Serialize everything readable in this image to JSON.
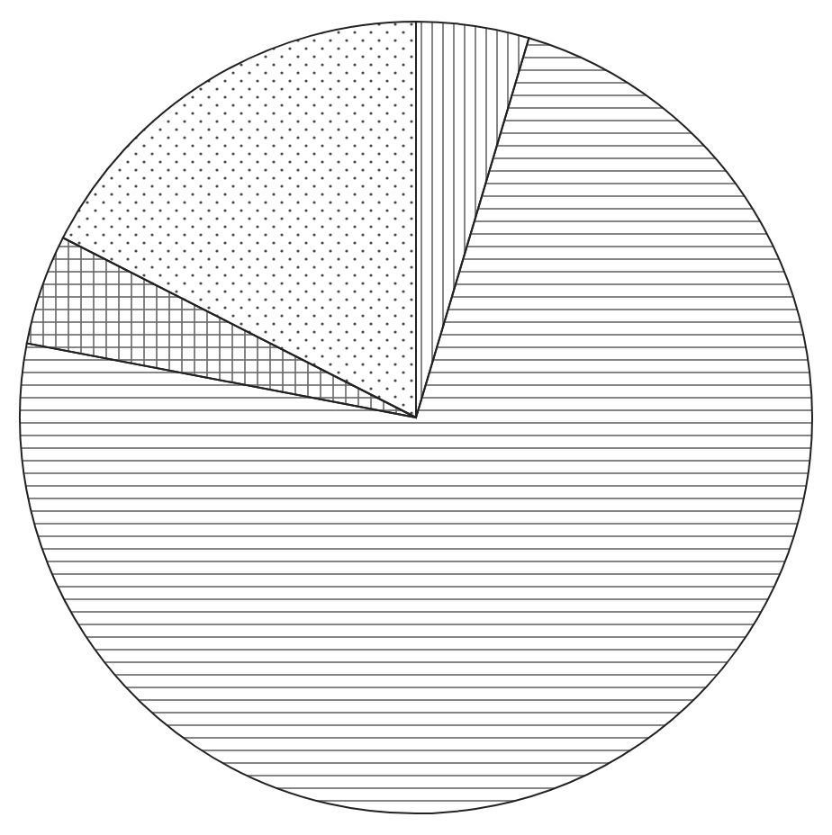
{
  "chart_data": {
    "type": "pie",
    "categories": [
      null,
      null,
      null,
      null
    ],
    "values": [
      4.6,
      73.4,
      4.5,
      17.5
    ],
    "colors": [
      "#ffffff",
      "#ffffff",
      "#ffffff",
      "#ffffff"
    ]
  }
}
